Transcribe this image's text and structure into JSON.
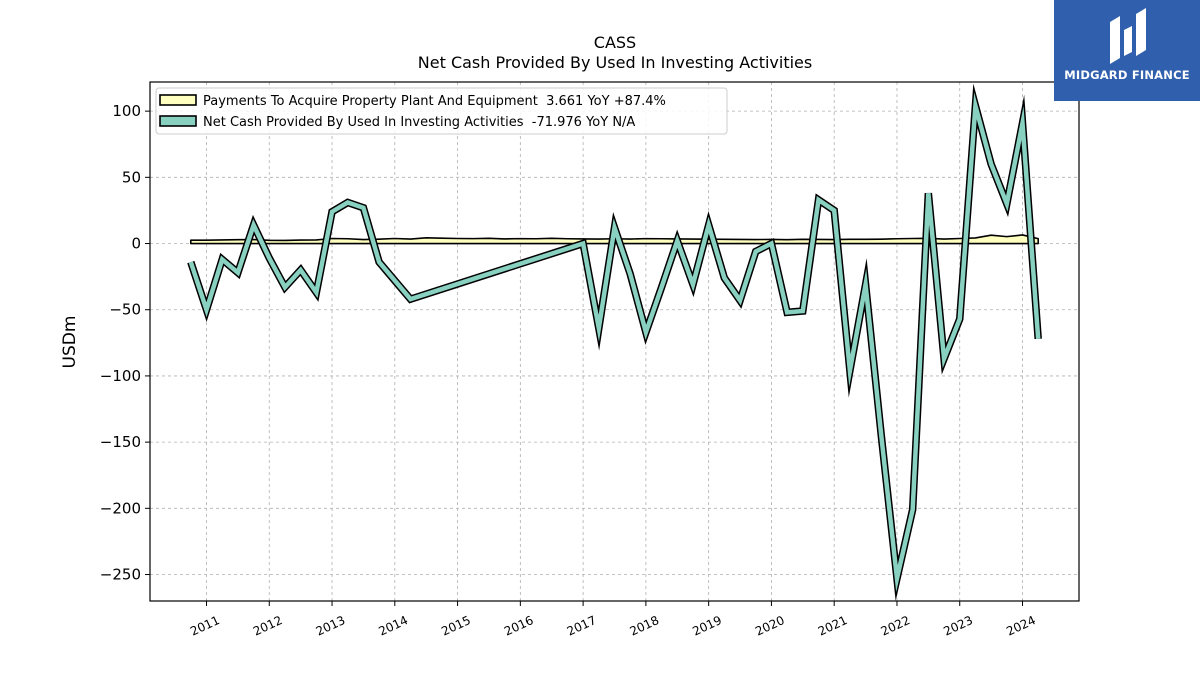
{
  "chart_data": {
    "type": "line",
    "title": "CASS",
    "subtitle": "Net Cash Provided By Used In Investing Activities",
    "ylabel": "USDm",
    "xlabel": "",
    "xlim": [
      2010.1,
      2024.9
    ],
    "ylim": [
      -270,
      122
    ],
    "yticks": [
      100,
      50,
      0,
      -50,
      -100,
      -150,
      -200,
      -250
    ],
    "ytick_labels": [
      "100",
      "50",
      "0",
      "−50",
      "−100",
      "−150",
      "−200",
      "−250"
    ],
    "xticks": [
      2011,
      2012,
      2013,
      2014,
      2015,
      2016,
      2017,
      2018,
      2019,
      2020,
      2021,
      2022,
      2023,
      2024
    ],
    "xtick_labels": [
      "2011",
      "2012",
      "2013",
      "2014",
      "2015",
      "2016",
      "2017",
      "2018",
      "2019",
      "2020",
      "2021",
      "2022",
      "2023",
      "2024"
    ],
    "grid": true,
    "legend_position": "top-left",
    "series": [
      {
        "name": "Payments To Acquire Property Plant And Equipment  3.661 YoY +87.4%",
        "kind": "band",
        "color": "#ffffc0",
        "x": [
          2010.75,
          2011.0,
          2011.25,
          2011.5,
          2011.75,
          2012.0,
          2012.25,
          2012.5,
          2012.75,
          2013.0,
          2013.25,
          2013.5,
          2013.75,
          2014.0,
          2014.25,
          2014.5,
          2014.75,
          2015.0,
          2015.25,
          2015.5,
          2015.75,
          2016.0,
          2016.25,
          2016.5,
          2016.75,
          2017.0,
          2017.25,
          2017.5,
          2017.75,
          2018.0,
          2018.25,
          2018.5,
          2018.75,
          2019.0,
          2019.25,
          2019.5,
          2019.75,
          2020.0,
          2020.25,
          2020.5,
          2020.75,
          2021.0,
          2021.25,
          2021.5,
          2021.75,
          2022.0,
          2022.25,
          2022.5,
          2022.75,
          2023.0,
          2023.25,
          2023.5,
          2023.75,
          2024.0,
          2024.25
        ],
        "values": [
          2.5,
          2.5,
          2.7,
          2.9,
          3.0,
          2.4,
          2.3,
          2.6,
          2.7,
          3.8,
          3.6,
          3.0,
          3.3,
          3.8,
          3.4,
          4.3,
          4.0,
          3.8,
          3.7,
          3.9,
          3.5,
          3.7,
          3.6,
          3.9,
          3.6,
          3.5,
          3.4,
          3.6,
          3.4,
          3.7,
          3.6,
          3.5,
          3.4,
          3.3,
          3.2,
          3.1,
          3.0,
          3.1,
          2.9,
          3.2,
          3.1,
          3.0,
          3.2,
          3.2,
          3.3,
          3.6,
          3.8,
          3.9,
          3.4,
          3.8,
          4.2,
          6.3,
          5.2,
          6.5,
          3.661
        ]
      },
      {
        "name": "Net Cash Provided By Used In Investing Activities  -71.976 YoY N/A",
        "kind": "line",
        "color": "#88d0c0",
        "x": [
          2010.75,
          2011.0,
          2011.25,
          2011.5,
          2011.75,
          2012.0,
          2012.25,
          2012.5,
          2012.75,
          2013.0,
          2013.25,
          2013.5,
          2013.75,
          2014.25,
          2017.0,
          2017.25,
          2017.5,
          2017.75,
          2018.0,
          2018.25,
          2018.5,
          2018.75,
          2019.0,
          2019.25,
          2019.5,
          2019.75,
          2020.0,
          2020.25,
          2020.5,
          2020.75,
          2021.0,
          2021.25,
          2021.5,
          2021.75,
          2022.0,
          2022.25,
          2022.5,
          2022.75,
          2023.0,
          2023.25,
          2023.5,
          2023.75,
          2024.0,
          2024.25
        ],
        "values": [
          -14,
          -50,
          -12,
          -22,
          14,
          -11,
          -33,
          -20,
          -37,
          24,
          31,
          27,
          -14,
          -42,
          0,
          -64,
          12,
          -23,
          -67,
          -33,
          2,
          -31,
          14,
          -26,
          -43,
          -6,
          0,
          -52,
          -51,
          33,
          25,
          -96,
          -31,
          -145,
          -253,
          -201,
          38,
          -87,
          -57,
          104,
          60,
          30,
          91,
          -72
        ]
      }
    ]
  },
  "logo": {
    "text": "MIDGARD FINANCE",
    "color": "#2f5fad"
  }
}
